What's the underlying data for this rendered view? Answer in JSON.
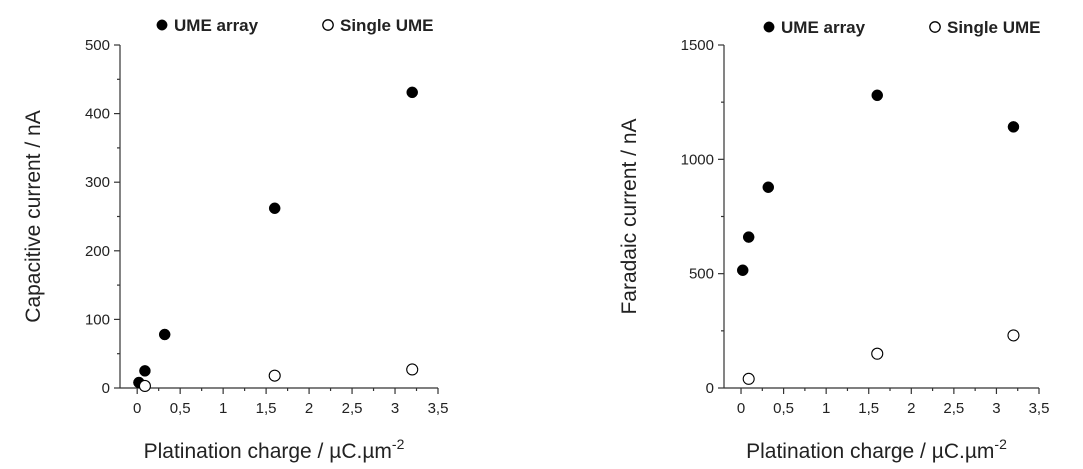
{
  "chart_data": [
    {
      "type": "scatter",
      "xlabel": "Platination charge / µC.µm",
      "xlabel_sup": "-2",
      "ylabel": "Capacitive current / nA",
      "xlim": [
        -0.2,
        3.5
      ],
      "ylim": [
        0,
        500
      ],
      "x_ticks": [
        0,
        0.5,
        1,
        1.5,
        2,
        2.5,
        3,
        3.5
      ],
      "x_tick_labels": [
        "0",
        "0,5",
        "1",
        "1,5",
        "2",
        "2,5",
        "3",
        "3,5"
      ],
      "y_ticks": [
        0,
        100,
        200,
        300,
        400,
        500
      ],
      "y_tick_labels": [
        "0",
        "100",
        "200",
        "300",
        "400",
        "500"
      ],
      "legend_position": "top",
      "series": [
        {
          "name": "UME array",
          "marker": "filled-circle",
          "color": "#000000",
          "points": [
            [
              0.02,
              8
            ],
            [
              0.09,
              25
            ],
            [
              0.32,
              78
            ],
            [
              1.6,
              262
            ],
            [
              3.2,
              431
            ]
          ]
        },
        {
          "name": "Single UME",
          "marker": "open-circle",
          "color": "#000000",
          "points": [
            [
              0.09,
              3
            ],
            [
              1.6,
              18
            ],
            [
              3.2,
              27
            ]
          ]
        }
      ]
    },
    {
      "type": "scatter",
      "xlabel": "Platination charge / µC.µm",
      "xlabel_sup": "-2",
      "ylabel": "Faradaic current / nA",
      "xlim": [
        -0.2,
        3.5
      ],
      "ylim": [
        0,
        1500
      ],
      "x_ticks": [
        0,
        0.5,
        1,
        1.5,
        2,
        2.5,
        3,
        3.5
      ],
      "x_tick_labels": [
        "0",
        "0,5",
        "1",
        "1,5",
        "2",
        "2,5",
        "3",
        "3,5"
      ],
      "y_ticks": [
        0,
        500,
        1000,
        1500
      ],
      "y_tick_labels": [
        "0",
        "500",
        "1000",
        "1500"
      ],
      "legend_position": "top",
      "series": [
        {
          "name": "UME array",
          "marker": "filled-circle",
          "color": "#000000",
          "points": [
            [
              0.02,
              515
            ],
            [
              0.09,
              660
            ],
            [
              0.32,
              878
            ],
            [
              1.6,
              1280
            ],
            [
              3.2,
              1142
            ]
          ]
        },
        {
          "name": "Single UME",
          "marker": "open-circle",
          "color": "#000000",
          "points": [
            [
              0.09,
              40
            ],
            [
              1.6,
              150
            ],
            [
              3.2,
              230
            ]
          ]
        }
      ]
    }
  ]
}
